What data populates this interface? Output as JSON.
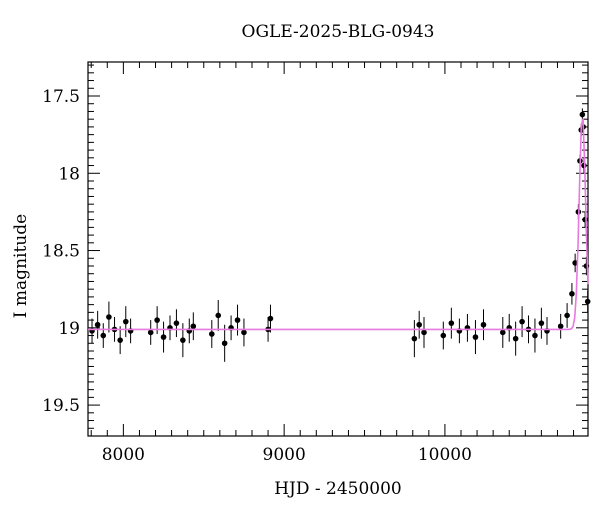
{
  "chart_data": {
    "type": "scatter",
    "title": "OGLE-2025-BLG-0943",
    "xlabel": "HJD - 2450000",
    "ylabel": "I magnitude",
    "xlim": [
      7780,
      10890
    ],
    "ylim": [
      19.7,
      17.28
    ],
    "y_inverted": true,
    "x_ticks": [
      8000,
      9000,
      10000
    ],
    "x_tick_labels": [
      "8000",
      "9000",
      "10000"
    ],
    "y_ticks": [
      17.5,
      18,
      18.5,
      19,
      19.5
    ],
    "y_tick_labels": [
      "17.5",
      "18",
      "18.5",
      "19",
      "19.5"
    ],
    "grid": false,
    "legend": "none",
    "series": [
      {
        "kind": "points_with_errorbars",
        "color": "#000000",
        "baseline_mag": 19.01,
        "observing_seasons": [
          [
            7790,
            8050
          ],
          [
            8160,
            8440
          ],
          [
            8540,
            8760
          ],
          [
            8890,
            8920
          ],
          [
            9800,
            9890
          ],
          [
            9980,
            10250
          ],
          [
            10350,
            10640
          ],
          [
            10700,
            10890
          ]
        ],
        "x": [
          7805,
          7840,
          7875,
          7910,
          7945,
          7980,
          8015,
          8045,
          8170,
          8210,
          8250,
          8290,
          8330,
          8370,
          8410,
          8435,
          8550,
          8590,
          8630,
          8670,
          8710,
          8750,
          8900,
          8915,
          9810,
          9840,
          9870,
          9990,
          10040,
          10090,
          10140,
          10190,
          10240,
          10360,
          10400,
          10440,
          10480,
          10520,
          10560,
          10600,
          10635,
          10720,
          10760,
          10790,
          10810,
          10830,
          10840,
          10848,
          10855,
          10860,
          10865,
          10872,
          10880,
          10888
        ],
        "y": [
          19.02,
          18.98,
          19.05,
          18.93,
          19.01,
          19.08,
          18.96,
          19.02,
          19.03,
          18.95,
          19.06,
          19.0,
          18.97,
          19.08,
          19.02,
          18.99,
          19.04,
          18.92,
          19.1,
          19.0,
          18.95,
          19.03,
          19.01,
          18.94,
          19.07,
          18.98,
          19.03,
          19.05,
          18.97,
          19.02,
          19.0,
          19.06,
          18.98,
          19.03,
          19.0,
          19.07,
          18.96,
          19.01,
          19.05,
          18.97,
          19.02,
          18.99,
          18.92,
          18.78,
          18.58,
          18.25,
          17.92,
          17.72,
          17.62,
          17.7,
          17.95,
          18.3,
          18.6,
          18.83
        ],
        "err": [
          0.08,
          0.09,
          0.08,
          0.1,
          0.08,
          0.09,
          0.1,
          0.08,
          0.08,
          0.09,
          0.1,
          0.08,
          0.09,
          0.11,
          0.08,
          0.09,
          0.09,
          0.1,
          0.12,
          0.08,
          0.1,
          0.09,
          0.08,
          0.09,
          0.12,
          0.09,
          0.1,
          0.09,
          0.1,
          0.08,
          0.09,
          0.11,
          0.1,
          0.1,
          0.09,
          0.11,
          0.1,
          0.09,
          0.11,
          0.1,
          0.09,
          0.08,
          0.08,
          0.07,
          0.06,
          0.05,
          0.04,
          0.04,
          0.04,
          0.04,
          0.05,
          0.05,
          0.06,
          0.07
        ]
      },
      {
        "kind": "model_curve",
        "color": "#e879e0",
        "baseline_mag": 19.01,
        "peak_x": 10855,
        "peak_mag": 17.62,
        "rise_start_x": 10740
      }
    ]
  }
}
